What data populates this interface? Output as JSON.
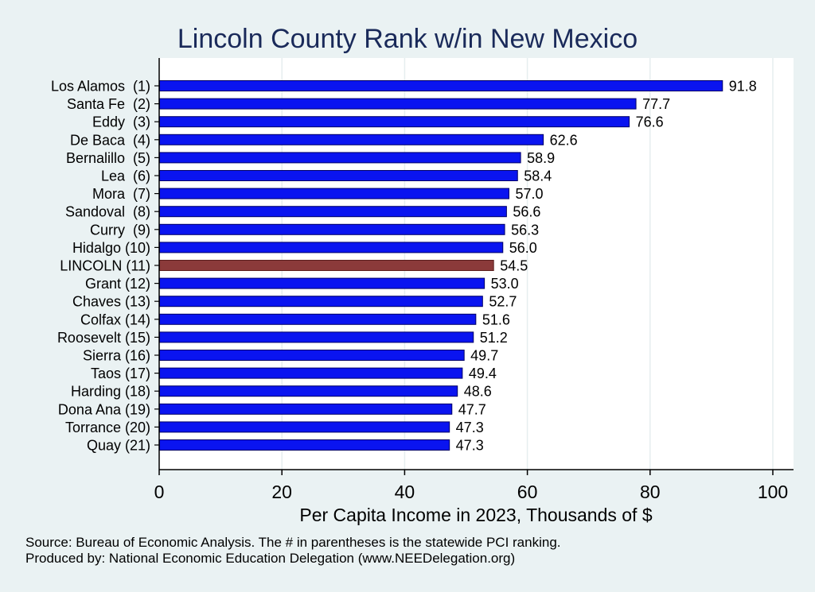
{
  "chart_data": {
    "type": "bar",
    "orientation": "horizontal",
    "title": "Lincoln County Rank w/in New Mexico",
    "xlabel": "Per Capita Income in 2023, Thousands of $",
    "ylabel": "",
    "xlim": [
      0,
      100
    ],
    "xticks": [
      0,
      20,
      40,
      60,
      80,
      100
    ],
    "grid": true,
    "categories": [
      "Los Alamos  (1)",
      "Santa Fe  (2)",
      "Eddy  (3)",
      "De Baca  (4)",
      "Bernalillo  (5)",
      "Lea  (6)",
      "Mora  (7)",
      "Sandoval  (8)",
      "Curry  (9)",
      "Hidalgo (10)",
      "LINCOLN (11)",
      "Grant (12)",
      "Chaves (13)",
      "Colfax (14)",
      "Roosevelt (15)",
      "Sierra (16)",
      "Taos (17)",
      "Harding (18)",
      "Dona Ana (19)",
      "Torrance (20)",
      "Quay (21)"
    ],
    "values": [
      91.8,
      77.7,
      76.6,
      62.6,
      58.9,
      58.4,
      57.0,
      56.6,
      56.3,
      56.0,
      54.5,
      53.0,
      52.7,
      51.6,
      51.2,
      49.7,
      49.4,
      48.6,
      47.7,
      47.3,
      47.3
    ],
    "value_labels": [
      "91.8",
      "77.7",
      "76.6",
      "62.6",
      "58.9",
      "58.4",
      "57.0",
      "56.6",
      "56.3",
      "56.0",
      "54.5",
      "53.0",
      "52.7",
      "51.6",
      "51.2",
      "49.7",
      "49.4",
      "48.6",
      "47.7",
      "47.3",
      "47.3"
    ],
    "highlight_index": 10,
    "colors": {
      "bar": "#0a14f0",
      "bar_edge": "#000066",
      "highlight": "#8b3a3a",
      "highlight_edge": "#5a1f1f",
      "title": "#1a2a5a",
      "plot_bg": "#ffffff",
      "grid": "#e6eeef"
    }
  },
  "footer": {
    "source": "Source: Bureau of Economic Analysis. The # in parentheses is the statewide PCI ranking.",
    "produced": "Produced by: National Economic Education Delegation (www.NEEDelegation.org)"
  }
}
